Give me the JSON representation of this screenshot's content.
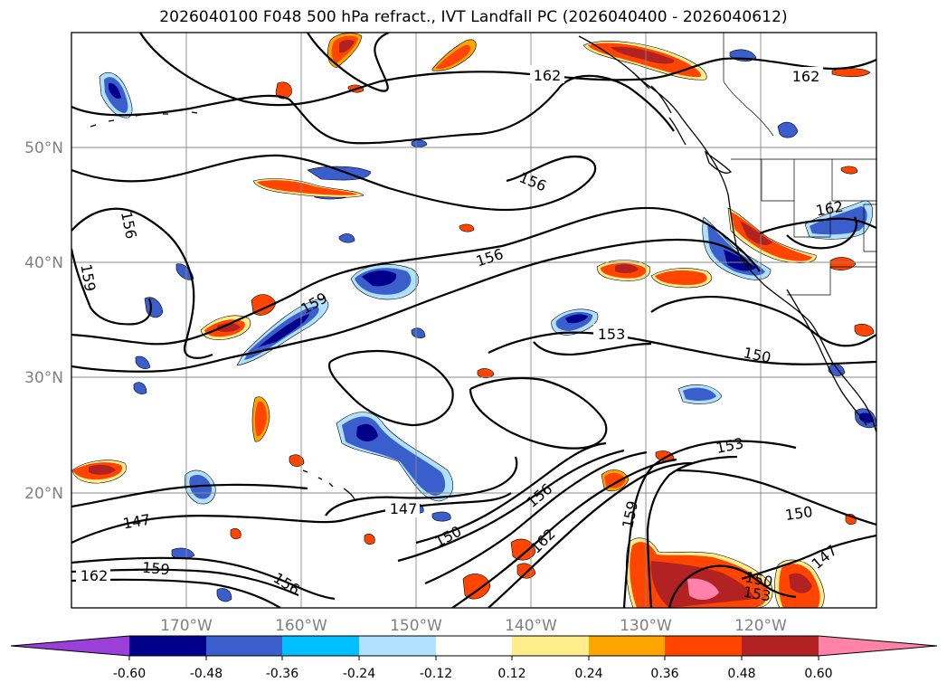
{
  "title": "2026040100 F048 500 hPa refract., IVT Landfall PC (2026040400 - 2026040612)",
  "longitude_labels": [
    "170°W",
    "160°W",
    "150°W",
    "140°W",
    "130°W",
    "120°W"
  ],
  "latitude_labels": [
    "50°N",
    "40°N",
    "30°N",
    "20°N"
  ],
  "contour_labels": [
    "162",
    "162",
    "156",
    "156",
    "159",
    "159",
    "156",
    "153",
    "150",
    "162",
    "153",
    "150",
    "147",
    "147",
    "150",
    "156",
    "159",
    "162",
    "150",
    "153",
    "147",
    "162",
    "159",
    "156"
  ],
  "colorbar": {
    "ticks": [
      "-0.60",
      "-0.48",
      "-0.36",
      "-0.24",
      "-0.12",
      "0.12",
      "0.24",
      "0.36",
      "0.48",
      "0.60"
    ],
    "colors": {
      "under": "#9a3fd8",
      "b1": "#00008b",
      "b2": "#3a5fcd",
      "b3": "#00bfff",
      "b4": "#b0e2ff",
      "zero": "#ffffff",
      "r1": "#ffec8b",
      "r2": "#ffa500",
      "r3": "#ff4500",
      "r4": "#b22222",
      "over": "#ff82ab"
    }
  }
}
